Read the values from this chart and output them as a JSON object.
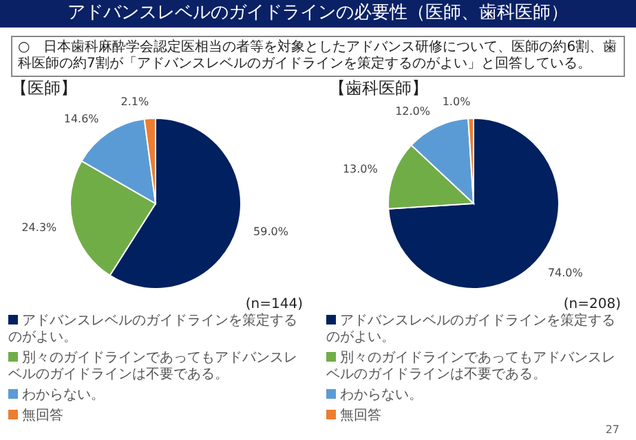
{
  "chart_data": [
    {
      "type": "pie",
      "title": "【医師】",
      "categories": [
        "アドバンスレベルのガイドラインを策定するのがよい。",
        "別々のガイドラインであってもアドバンスレベルのガイドラインは不要である。",
        "わからない。",
        "無回答"
      ],
      "values": [
        59.0,
        24.3,
        14.6,
        2.1
      ],
      "value_labels": [
        "59.0%",
        "24.3%",
        "14.6%",
        "2.1%"
      ],
      "colors": [
        "#002060",
        "#70ad47",
        "#5b9bd5",
        "#ed7d31"
      ],
      "legend": "bottom",
      "annotations": [
        "アドバンスレベルのガイドラインの必要性（医師、歯科医師）",
        "○　日本歯科麻酔学会認定医相当の者等を対象としたアドバンス研修について、医師の約6割、歯科医師の約7割が「アドバンスレベルのガイドラインを策定するのがよい」と回答している。",
        "(n=144)"
      ]
    },
    {
      "type": "pie",
      "title": "【歯科医師】",
      "categories": [
        "アドバンスレベルのガイドラインを策定するのがよい。",
        "別々のガイドラインであってもアドバンスレベルのガイドラインは不要である。",
        "わからない。",
        "無回答"
      ],
      "values": [
        74.0,
        13.0,
        12.0,
        1.0
      ],
      "value_labels": [
        "74.0%",
        "13.0%",
        "12.0%",
        "1.0%"
      ],
      "colors": [
        "#002060",
        "#70ad47",
        "#5b9bd5",
        "#ed7d31"
      ],
      "legend": "bottom",
      "annotations": [
        "(n=208)",
        "27"
      ]
    }
  ]
}
